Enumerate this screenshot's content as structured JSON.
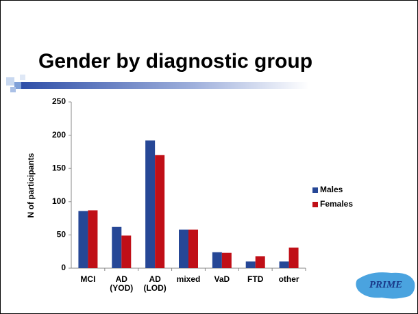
{
  "chart_data": {
    "type": "bar",
    "title": "Gender by diagnostic group",
    "categories": [
      "MCI",
      "AD (YOD)",
      "AD (LOD)",
      "mixed",
      "VaD",
      "FTD",
      "other"
    ],
    "series": [
      {
        "name": "Males",
        "color": "#264796",
        "values": [
          86,
          62,
          192,
          58,
          24,
          10,
          10
        ]
      },
      {
        "name": "Females",
        "color": "#c00f17",
        "values": [
          87,
          49,
          170,
          58,
          23,
          18,
          31
        ]
      }
    ],
    "y_label": "N of participants",
    "ylim": [
      0,
      250
    ],
    "yticks": [
      0,
      50,
      100,
      150,
      200,
      250
    ],
    "grid": false,
    "legend": "right",
    "logo": "PRIME"
  }
}
